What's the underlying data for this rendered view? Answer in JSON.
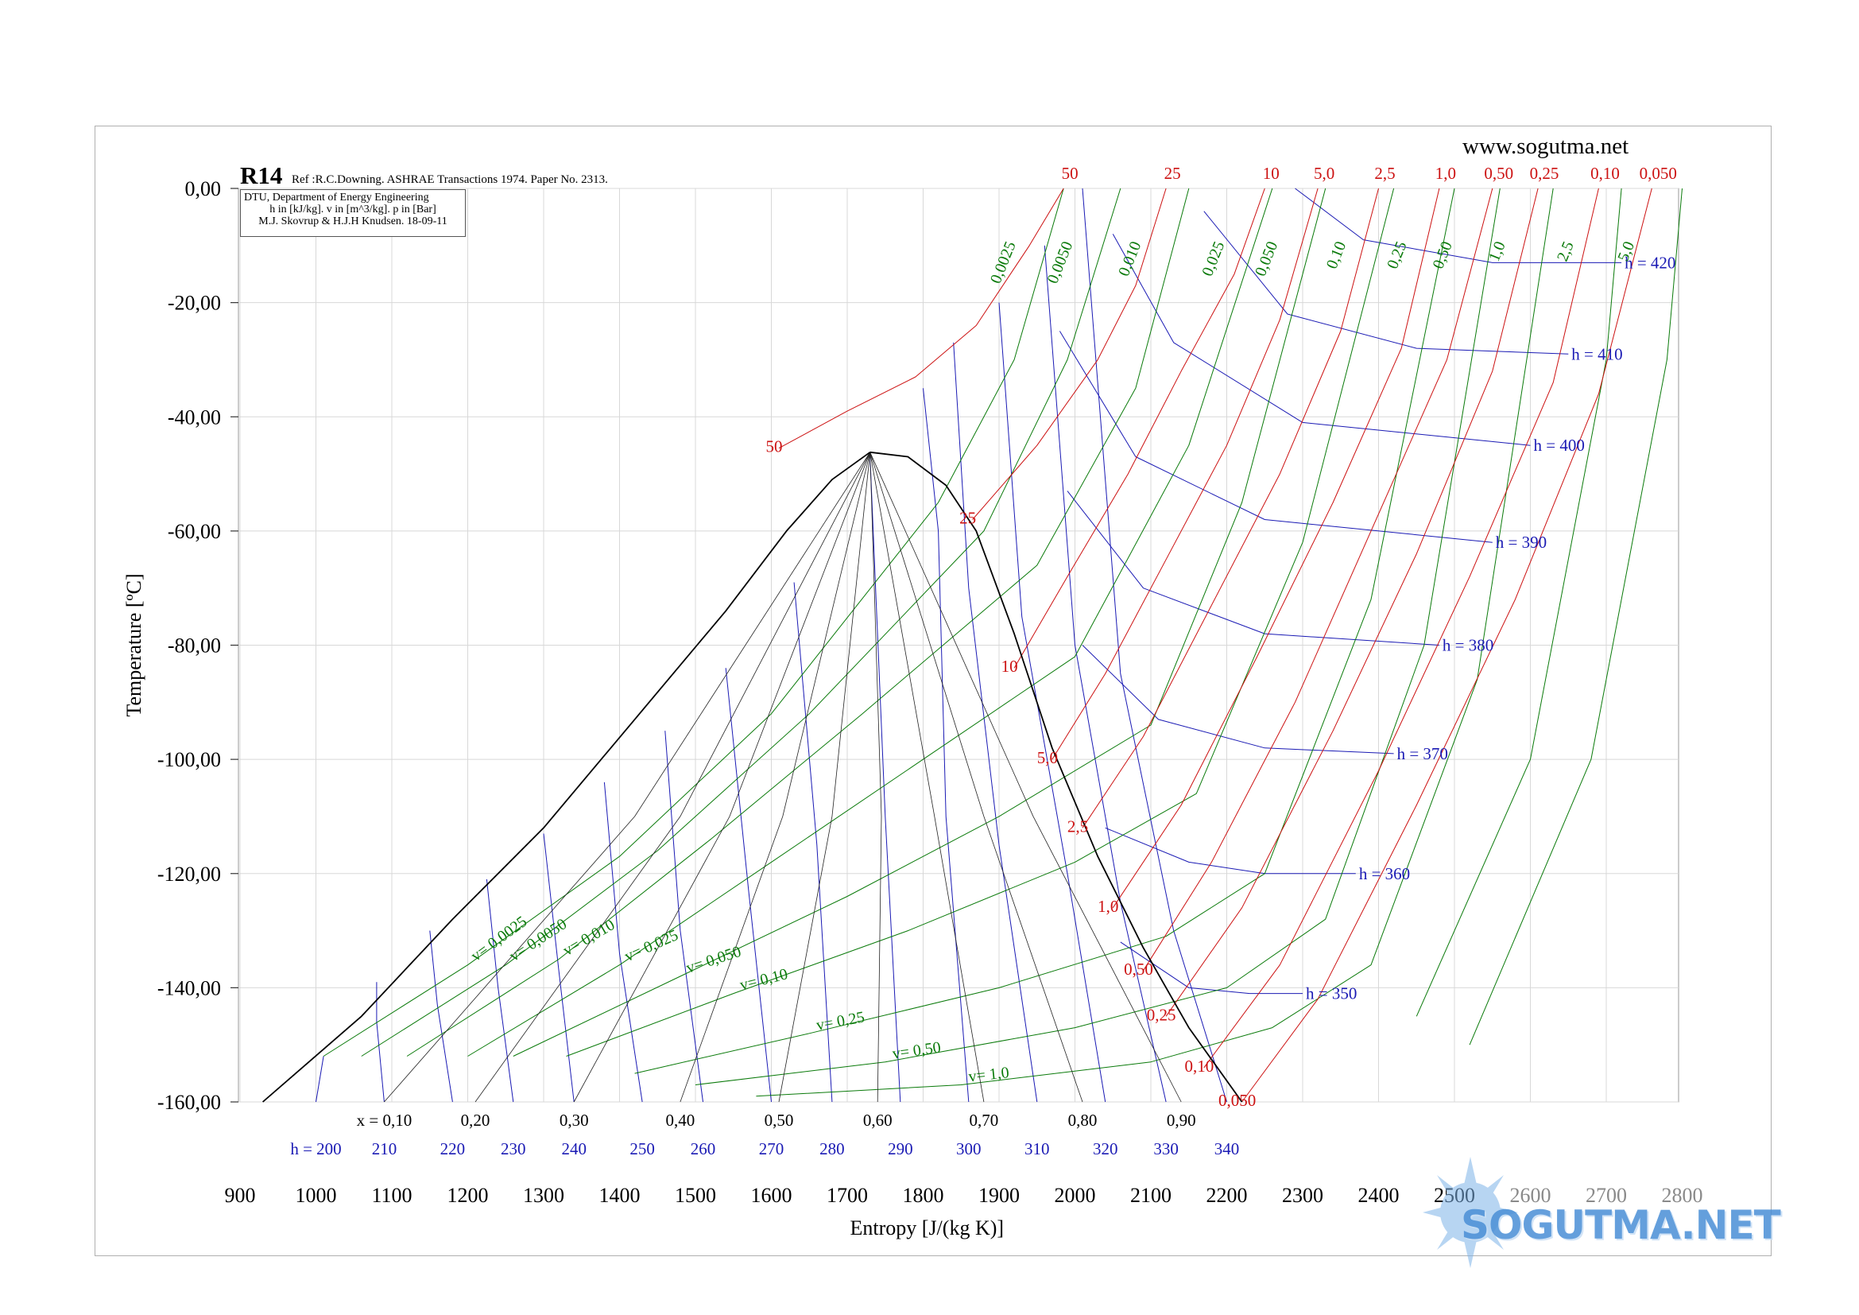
{
  "header": {
    "website": "www.sogutma.net",
    "title": "R14",
    "reference": "Ref :R.C.Downing. ASHRAE Transactions 1974. Paper No. 2313.",
    "info_lines": [
      "DTU, Department of Energy Engineering",
      "h in [kJ/kg]. v in [m^3/kg]. p in [Bar]",
      "M.J. Skovrup & H.J.H Knudsen. 18-09-11"
    ]
  },
  "watermark": {
    "text": "SOGUTMA.NET"
  },
  "colors": {
    "pressure": "#cc1111",
    "volume": "#0a7a0a",
    "enthalpy": "#1a1ab4",
    "quality": "#222222",
    "dome": "#000000",
    "grid": "#d8d8d8"
  },
  "chart_data": {
    "type": "line",
    "title": "R14",
    "xlabel": "Entropy [J/(kg K)]",
    "ylabel": "Temperature [ºC]",
    "xlim": [
      900,
      2800
    ],
    "ylim": [
      -160,
      0
    ],
    "x_ticks": [
      "900",
      "1000",
      "1100",
      "1200",
      "1300",
      "1400",
      "1500",
      "1600",
      "1700",
      "1800",
      "1900",
      "2000",
      "2100",
      "2200",
      "2300",
      "2400",
      "2500",
      "2600",
      "2700",
      "2800"
    ],
    "y_ticks": [
      "0,00",
      "-20,00",
      "-40,00",
      "-60,00",
      "-80,00",
      "-100,00",
      "-120,00",
      "-140,00",
      "-160,00"
    ],
    "grid": true,
    "saturation_dome": {
      "liquid": [
        [
          930,
          -160
        ],
        [
          1060,
          -145
        ],
        [
          1180,
          -128
        ],
        [
          1300,
          -112
        ],
        [
          1420,
          -93
        ],
        [
          1540,
          -74
        ],
        [
          1620,
          -60
        ],
        [
          1680,
          -51
        ],
        [
          1730,
          -46.2
        ]
      ],
      "vapor": [
        [
          1730,
          -46.2
        ],
        [
          1780,
          -47
        ],
        [
          1830,
          -52
        ],
        [
          1870,
          -60
        ],
        [
          1920,
          -78
        ],
        [
          1970,
          -98
        ],
        [
          2030,
          -117
        ],
        [
          2090,
          -133
        ],
        [
          2150,
          -147
        ],
        [
          2220,
          -160
        ]
      ]
    },
    "isobars": [
      {
        "label": "50",
        "curve": [
          [
            1610,
            -45.5
          ],
          [
            1700,
            -39
          ],
          [
            1790,
            -33
          ],
          [
            1870,
            -24
          ],
          [
            1940,
            -10
          ],
          [
            1985,
            0
          ]
        ]
      },
      {
        "label": "25",
        "curve": [
          [
            1865,
            -58
          ],
          [
            1950,
            -45
          ],
          [
            2030,
            -30
          ],
          [
            2080,
            -17
          ],
          [
            2120,
            0
          ]
        ]
      },
      {
        "label": "10",
        "curve": [
          [
            1920,
            -84
          ],
          [
            1990,
            -68
          ],
          [
            2070,
            -50
          ],
          [
            2140,
            -32
          ],
          [
            2210,
            -15
          ],
          [
            2250,
            0
          ]
        ]
      },
      {
        "label": "5,0",
        "curve": [
          [
            1970,
            -100
          ],
          [
            2040,
            -85
          ],
          [
            2120,
            -65
          ],
          [
            2200,
            -45
          ],
          [
            2270,
            -23
          ],
          [
            2320,
            0
          ]
        ]
      },
      {
        "label": "2,5",
        "curve": [
          [
            2010,
            -112
          ],
          [
            2090,
            -96
          ],
          [
            2180,
            -73
          ],
          [
            2270,
            -50
          ],
          [
            2350,
            -25
          ],
          [
            2400,
            0
          ]
        ]
      },
      {
        "label": "1,0",
        "curve": [
          [
            2050,
            -126
          ],
          [
            2140,
            -108
          ],
          [
            2240,
            -82
          ],
          [
            2340,
            -55
          ],
          [
            2430,
            -28
          ],
          [
            2480,
            0
          ]
        ]
      },
      {
        "label": "0,50",
        "curve": [
          [
            2090,
            -137
          ],
          [
            2180,
            -118
          ],
          [
            2290,
            -90
          ],
          [
            2390,
            -60
          ],
          [
            2490,
            -30
          ],
          [
            2550,
            0
          ]
        ]
      },
      {
        "label": "0,25",
        "curve": [
          [
            2120,
            -145
          ],
          [
            2220,
            -126
          ],
          [
            2340,
            -95
          ],
          [
            2450,
            -64
          ],
          [
            2550,
            -32
          ],
          [
            2610,
            0
          ]
        ]
      },
      {
        "label": "0,10",
        "curve": [
          [
            2170,
            -154
          ],
          [
            2270,
            -136
          ],
          [
            2400,
            -102
          ],
          [
            2520,
            -68
          ],
          [
            2630,
            -34
          ],
          [
            2690,
            0
          ]
        ]
      },
      {
        "label": "0,050",
        "curve": [
          [
            2220,
            -160
          ],
          [
            2320,
            -142
          ],
          [
            2450,
            -108
          ],
          [
            2580,
            -72
          ],
          [
            2690,
            -36
          ],
          [
            2760,
            0
          ]
        ]
      }
    ],
    "isochores": [
      {
        "label": "v= 0,0025",
        "top_label": "0,0025",
        "curve": [
          [
            1010,
            -152
          ],
          [
            1200,
            -136
          ],
          [
            1400,
            -117
          ],
          [
            1600,
            -92
          ],
          [
            1820,
            -55
          ],
          [
            1920,
            -30
          ],
          [
            1985,
            0
          ]
        ]
      },
      {
        "label": "v= 0,0050",
        "top_label": "0,0050",
        "curve": [
          [
            1060,
            -152
          ],
          [
            1250,
            -136
          ],
          [
            1450,
            -116
          ],
          [
            1650,
            -92
          ],
          [
            1880,
            -60
          ],
          [
            1990,
            -30
          ],
          [
            2060,
            0
          ]
        ]
      },
      {
        "label": "v= 0,010",
        "top_label": "0,010",
        "curve": [
          [
            1120,
            -152
          ],
          [
            1320,
            -135
          ],
          [
            1520,
            -114
          ],
          [
            1720,
            -92
          ],
          [
            1950,
            -66
          ],
          [
            2080,
            -35
          ],
          [
            2150,
            0
          ]
        ]
      },
      {
        "label": "v= 0,025",
        "top_label": "0,025",
        "curve": [
          [
            1200,
            -152
          ],
          [
            1400,
            -136
          ],
          [
            1600,
            -118
          ],
          [
            1800,
            -100
          ],
          [
            2000,
            -82
          ],
          [
            2150,
            -45
          ],
          [
            2260,
            0
          ]
        ]
      },
      {
        "label": "v= 0,050",
        "top_label": "0,050",
        "curve": [
          [
            1260,
            -152
          ],
          [
            1480,
            -138
          ],
          [
            1700,
            -124
          ],
          [
            1900,
            -110
          ],
          [
            2100,
            -94
          ],
          [
            2220,
            -55
          ],
          [
            2330,
            0
          ]
        ]
      },
      {
        "label": "v= 0,10",
        "top_label": "0,10",
        "curve": [
          [
            1330,
            -152
          ],
          [
            1550,
            -141
          ],
          [
            1780,
            -130
          ],
          [
            2000,
            -118
          ],
          [
            2160,
            -106
          ],
          [
            2300,
            -62
          ],
          [
            2420,
            0
          ]
        ]
      },
      {
        "label": "v= 0,25",
        "top_label": "0,25",
        "curve": [
          [
            1420,
            -155
          ],
          [
            1650,
            -148
          ],
          [
            1900,
            -140
          ],
          [
            2120,
            -131
          ],
          [
            2250,
            -120
          ],
          [
            2390,
            -72
          ],
          [
            2500,
            0
          ]
        ]
      },
      {
        "label": "v= 0,50",
        "top_label": "0,50",
        "curve": [
          [
            1500,
            -157
          ],
          [
            1750,
            -153
          ],
          [
            2000,
            -147
          ],
          [
            2200,
            -140
          ],
          [
            2330,
            -128
          ],
          [
            2460,
            -80
          ],
          [
            2560,
            0
          ]
        ]
      },
      {
        "label": "v= 1,0",
        "top_label": "1,0",
        "curve": [
          [
            1580,
            -159
          ],
          [
            1850,
            -157
          ],
          [
            2100,
            -153
          ],
          [
            2260,
            -147
          ],
          [
            2390,
            -136
          ],
          [
            2530,
            -86
          ],
          [
            2630,
            0
          ]
        ]
      },
      {
        "label": "",
        "top_label": "2,5",
        "curve": [
          [
            2450,
            -145
          ],
          [
            2600,
            -100
          ],
          [
            2700,
            -30
          ],
          [
            2720,
            0
          ]
        ]
      },
      {
        "label": "",
        "top_label": "5,0",
        "curve": [
          [
            2520,
            -150
          ],
          [
            2680,
            -100
          ],
          [
            2780,
            -30
          ],
          [
            2800,
            0
          ]
        ]
      }
    ],
    "isenthalps": [
      {
        "label": "h = 200",
        "curve": [
          [
            1000,
            -160
          ],
          [
            1010,
            -152
          ]
        ]
      },
      {
        "label": "210",
        "curve": [
          [
            1090,
            -160
          ],
          [
            1080,
            -146
          ],
          [
            1080,
            -139
          ]
        ]
      },
      {
        "label": "220",
        "curve": [
          [
            1180,
            -160
          ],
          [
            1160,
            -143
          ],
          [
            1150,
            -130
          ]
        ]
      },
      {
        "label": "230",
        "curve": [
          [
            1260,
            -160
          ],
          [
            1240,
            -140
          ],
          [
            1225,
            -121
          ]
        ]
      },
      {
        "label": "240",
        "curve": [
          [
            1340,
            -160
          ],
          [
            1320,
            -137
          ],
          [
            1300,
            -113
          ]
        ]
      },
      {
        "label": "250",
        "curve": [
          [
            1430,
            -160
          ],
          [
            1400,
            -134
          ],
          [
            1380,
            -104
          ]
        ]
      },
      {
        "label": "260",
        "curve": [
          [
            1510,
            -160
          ],
          [
            1480,
            -130
          ],
          [
            1460,
            -95
          ]
        ]
      },
      {
        "label": "270",
        "curve": [
          [
            1600,
            -160
          ],
          [
            1570,
            -123
          ],
          [
            1540,
            -84
          ]
        ]
      },
      {
        "label": "280",
        "curve": [
          [
            1680,
            -160
          ],
          [
            1660,
            -115
          ],
          [
            1630,
            -69
          ]
        ]
      },
      {
        "label": "290",
        "curve": [
          [
            1770,
            -160
          ],
          [
            1750,
            -110
          ],
          [
            1730,
            -47
          ]
        ]
      },
      {
        "label": "300",
        "curve": [
          [
            1860,
            -160
          ],
          [
            1830,
            -110
          ],
          [
            1820,
            -60
          ],
          [
            1800,
            -35
          ]
        ]
      },
      {
        "label": "310",
        "curve": [
          [
            1950,
            -160
          ],
          [
            1900,
            -115
          ],
          [
            1860,
            -70
          ],
          [
            1840,
            -27
          ]
        ]
      },
      {
        "label": "320",
        "curve": [
          [
            2040,
            -160
          ],
          [
            1990,
            -120
          ],
          [
            1930,
            -75
          ],
          [
            1900,
            -20
          ]
        ]
      },
      {
        "label": "330",
        "curve": [
          [
            2120,
            -160
          ],
          [
            2060,
            -125
          ],
          [
            2000,
            -80
          ],
          [
            1960,
            -10
          ]
        ]
      },
      {
        "label": "340",
        "curve": [
          [
            2200,
            -160
          ],
          [
            2130,
            -130
          ],
          [
            2060,
            -85
          ],
          [
            2010,
            0
          ]
        ]
      },
      {
        "label": "h = 350",
        "curve": [
          [
            2060,
            -132
          ],
          [
            2150,
            -140
          ],
          [
            2230,
            -141
          ],
          [
            2300,
            -141
          ]
        ]
      },
      {
        "label": "h = 360",
        "curve": [
          [
            2040,
            -112
          ],
          [
            2150,
            -118
          ],
          [
            2250,
            -120
          ],
          [
            2370,
            -120
          ]
        ]
      },
      {
        "label": "h = 370",
        "curve": [
          [
            2010,
            -80
          ],
          [
            2110,
            -93
          ],
          [
            2250,
            -98
          ],
          [
            2420,
            -99
          ]
        ]
      },
      {
        "label": "h = 380",
        "curve": [
          [
            1990,
            -53
          ],
          [
            2090,
            -70
          ],
          [
            2250,
            -78
          ],
          [
            2480,
            -80
          ]
        ]
      },
      {
        "label": "h = 390",
        "curve": [
          [
            1980,
            -25
          ],
          [
            2080,
            -47
          ],
          [
            2250,
            -58
          ],
          [
            2550,
            -62
          ]
        ]
      },
      {
        "label": "h = 400",
        "curve": [
          [
            2050,
            -8
          ],
          [
            2130,
            -27
          ],
          [
            2300,
            -41
          ],
          [
            2600,
            -45
          ]
        ]
      },
      {
        "label": "h = 410",
        "curve": [
          [
            2170,
            -4
          ],
          [
            2280,
            -22
          ],
          [
            2450,
            -28
          ],
          [
            2650,
            -29
          ]
        ]
      },
      {
        "label": "h = 420",
        "curve": [
          [
            2290,
            0
          ],
          [
            2380,
            -9
          ],
          [
            2550,
            -13
          ],
          [
            2720,
            -13
          ]
        ]
      }
    ],
    "quality_lines": [
      {
        "label": "x = 0,10",
        "bottom": [
          1090,
          -160
        ]
      },
      {
        "label": "0,20",
        "bottom": [
          1210,
          -160
        ]
      },
      {
        "label": "0,30",
        "bottom": [
          1340,
          -160
        ]
      },
      {
        "label": "0,40",
        "bottom": [
          1480,
          -160
        ]
      },
      {
        "label": "0,50",
        "bottom": [
          1610,
          -160
        ]
      },
      {
        "label": "0,60",
        "bottom": [
          1740,
          -160
        ]
      },
      {
        "label": "0,70",
        "bottom": [
          1880,
          -160
        ]
      },
      {
        "label": "0,80",
        "bottom": [
          2010,
          -160
        ]
      },
      {
        "label": "0,90",
        "bottom": [
          2140,
          -160
        ]
      }
    ]
  }
}
